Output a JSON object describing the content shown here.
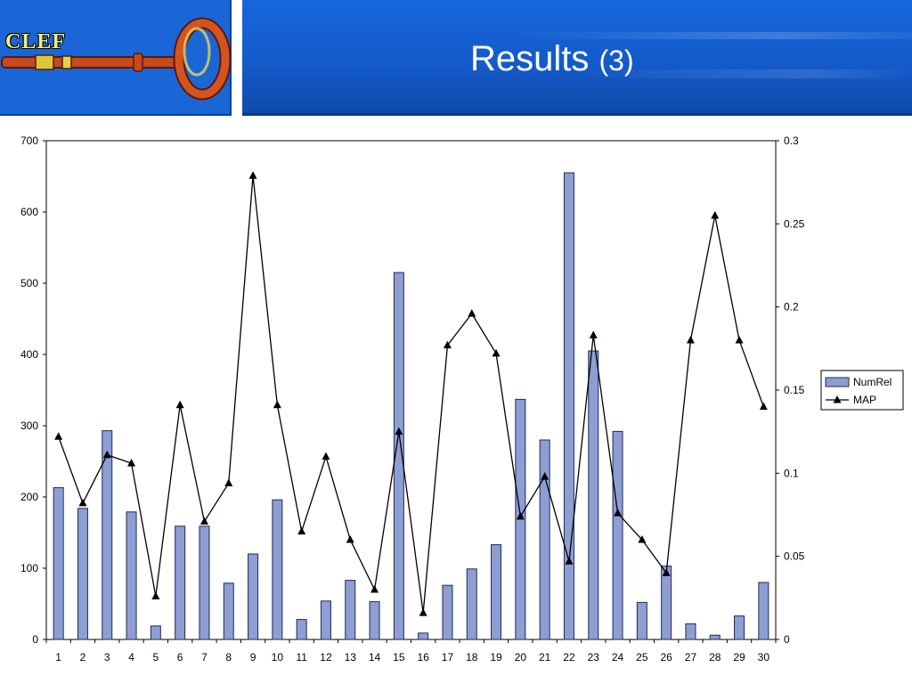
{
  "header": {
    "logo_text": "CLEF",
    "title": "Results",
    "title_number": "(3)"
  },
  "colors": {
    "bar_fill": "#8e9ed2",
    "bar_stroke": "#1f2a5a",
    "line": "#000000",
    "header_blue": "#1766dc"
  },
  "chart_data": {
    "type": "bar",
    "categories": [
      "1",
      "2",
      "3",
      "4",
      "5",
      "6",
      "7",
      "8",
      "9",
      "10",
      "11",
      "12",
      "13",
      "14",
      "15",
      "16",
      "17",
      "18",
      "19",
      "20",
      "21",
      "22",
      "23",
      "24",
      "25",
      "26",
      "27",
      "28",
      "29",
      "30"
    ],
    "series": [
      {
        "name": "NumRel",
        "type": "bar",
        "axis": "left",
        "values": [
          213,
          184,
          293,
          179,
          19,
          159,
          159,
          79,
          120,
          196,
          28,
          54,
          83,
          53,
          515,
          9,
          76,
          99,
          133,
          337,
          280,
          655,
          405,
          292,
          52,
          103,
          22,
          6,
          33,
          80
        ]
      },
      {
        "name": "MAP",
        "type": "line",
        "axis": "right",
        "values": [
          0.122,
          0.082,
          0.111,
          0.106,
          0.026,
          0.141,
          0.071,
          0.094,
          0.279,
          0.141,
          0.065,
          0.11,
          0.06,
          0.03,
          0.125,
          0.016,
          0.177,
          0.196,
          0.172,
          0.074,
          0.098,
          0.047,
          0.183,
          0.076,
          0.06,
          0.04,
          0.18,
          0.255,
          0.18,
          0.14
        ]
      }
    ],
    "y_left": {
      "ylim": [
        0,
        700
      ],
      "ticks": [
        "0",
        "100",
        "200",
        "300",
        "400",
        "500",
        "600",
        "700"
      ]
    },
    "y_right": {
      "ylim": [
        0,
        0.3
      ],
      "ticks": [
        "0",
        "0.05",
        "0.1",
        "0.15",
        "0.2",
        "0.25",
        "0.3"
      ]
    },
    "grid": false,
    "legend": {
      "position": "right",
      "entries": [
        "NumRel",
        "MAP"
      ]
    }
  }
}
